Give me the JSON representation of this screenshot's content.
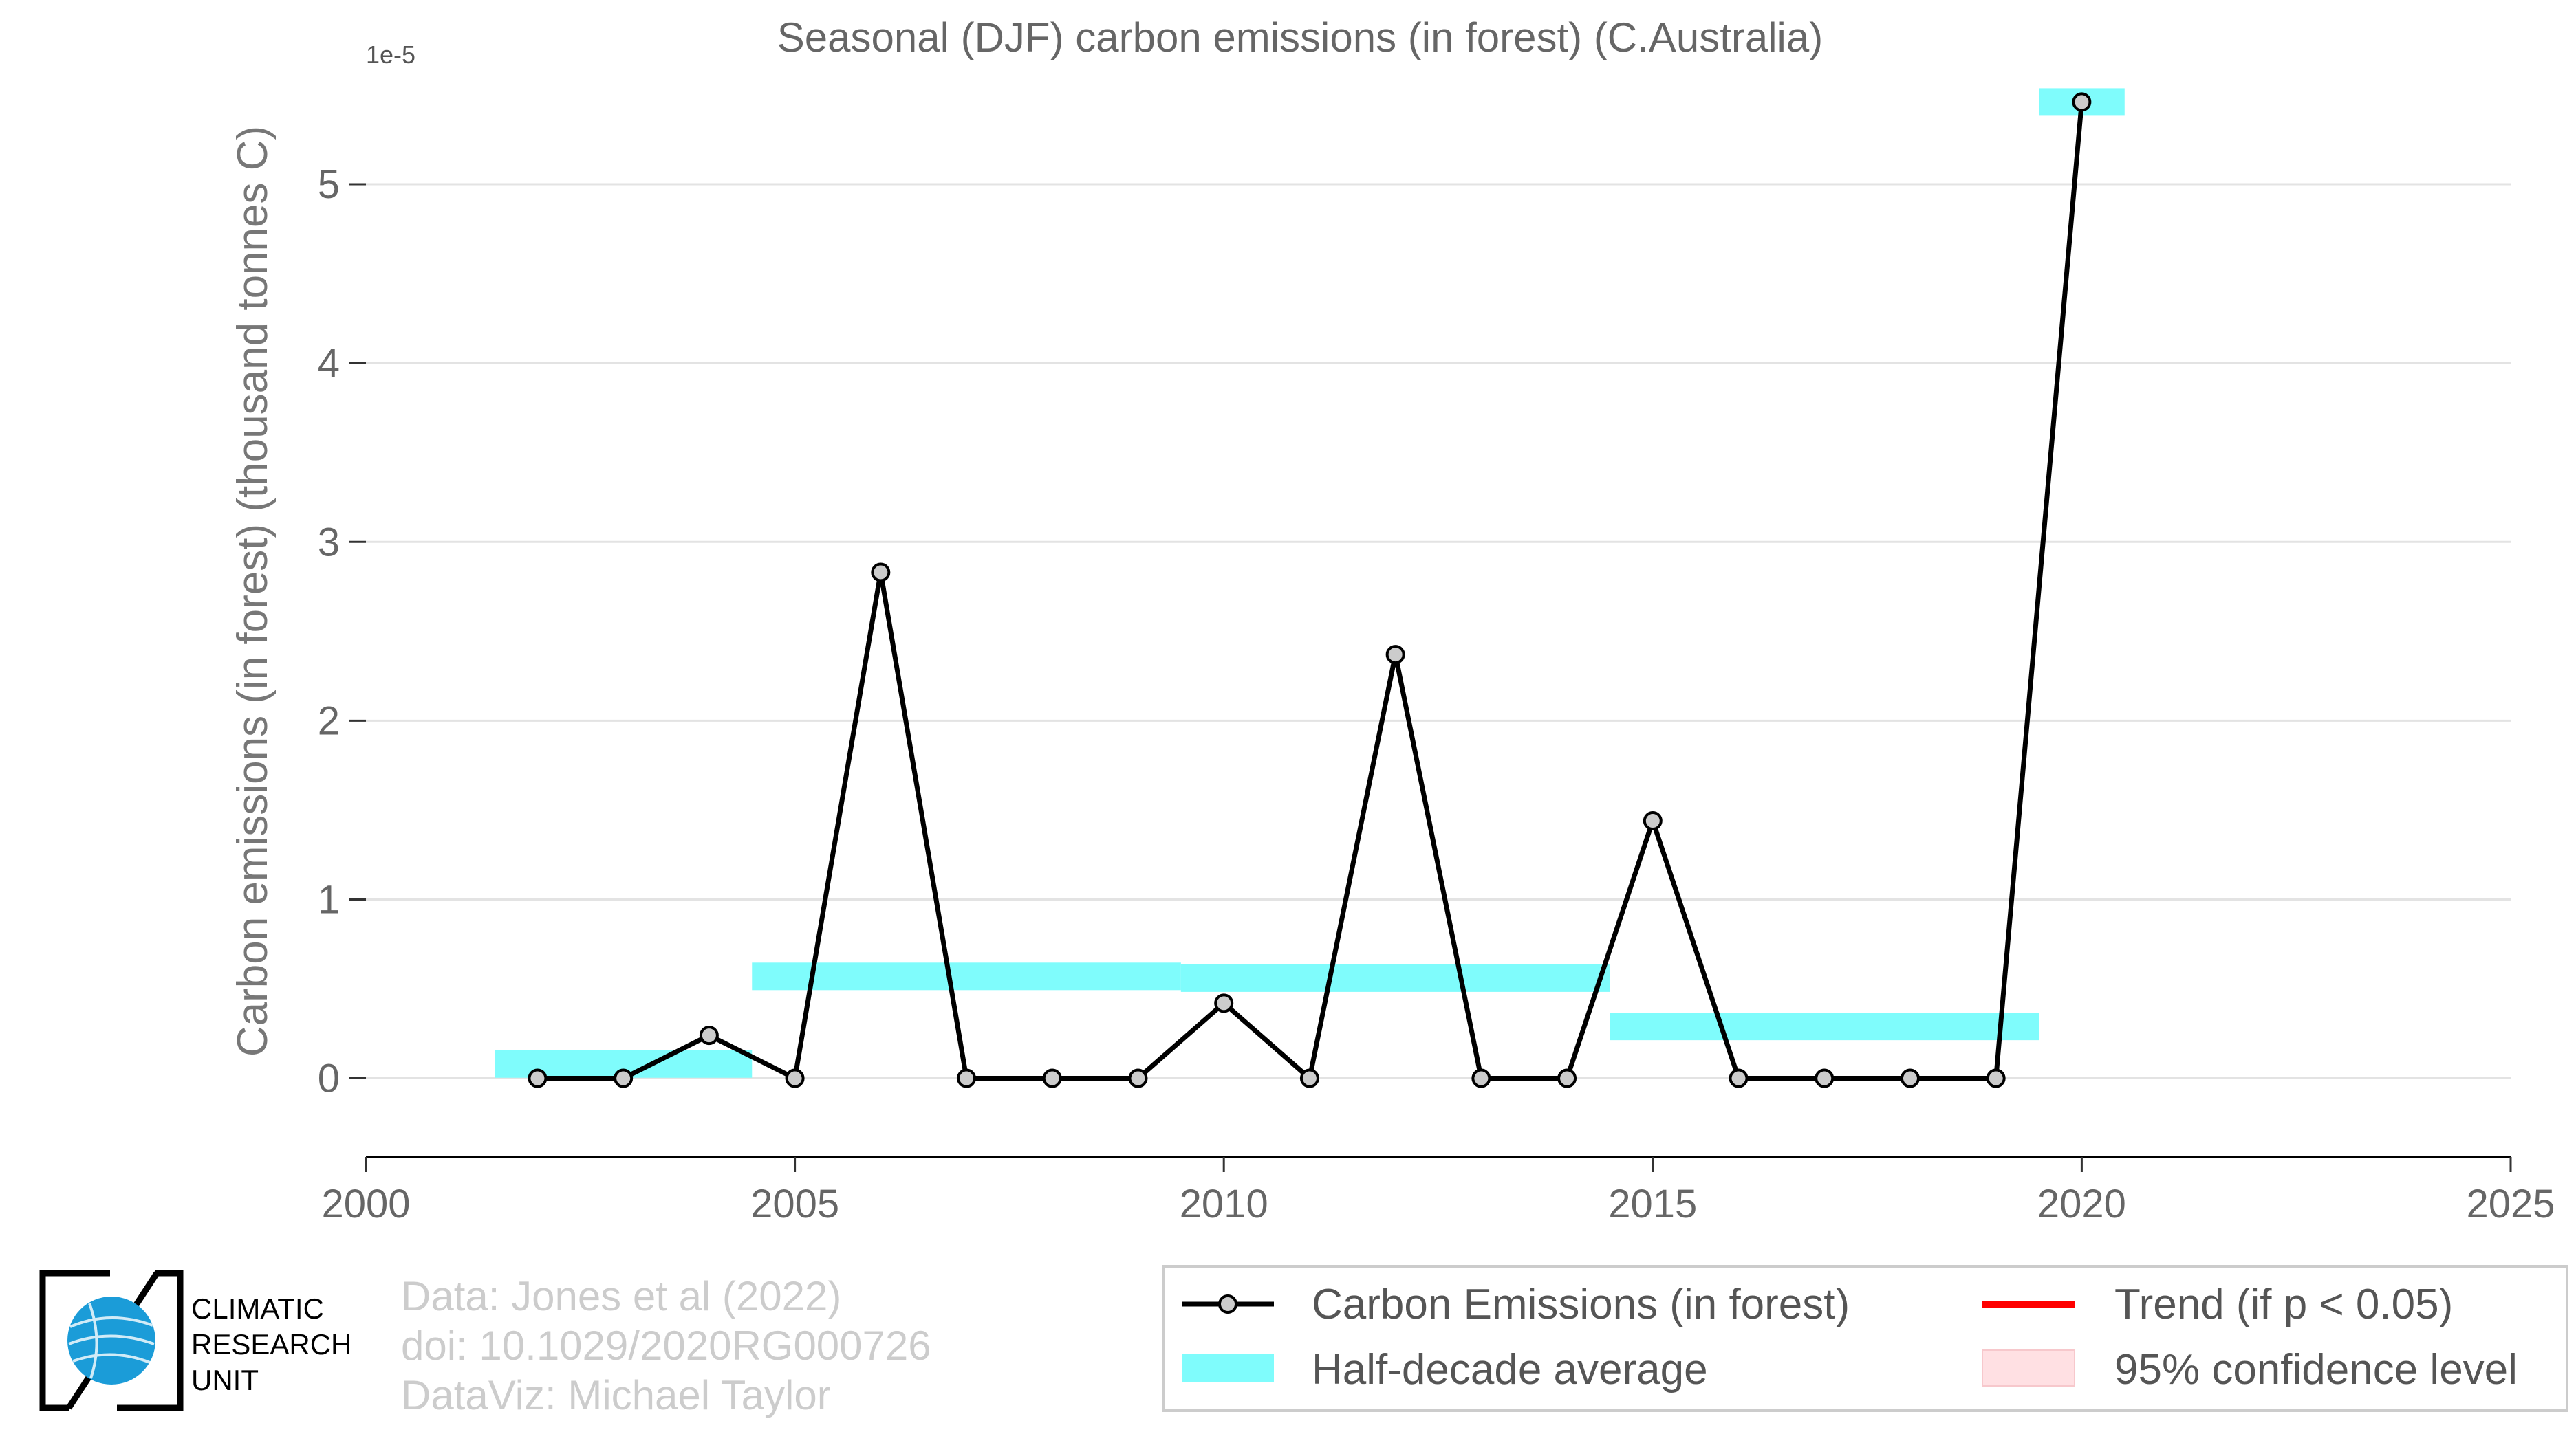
{
  "chart_data": {
    "type": "line",
    "title": "Seasonal (DJF) carbon emissions (in forest) (C.Australia)",
    "ylabel": "Carbon emissions (in forest) (thousand tonnes C)",
    "xlabel": "",
    "y_offset_label": "1e-5",
    "xlim": [
      2000,
      2025
    ],
    "ylim": [
      -0.44,
      5.5
    ],
    "x_ticks": [
      2000,
      2005,
      2010,
      2015,
      2020,
      2025
    ],
    "y_ticks": [
      0,
      1,
      2,
      3,
      4,
      5
    ],
    "grid": "horizontal",
    "legend_placement": "bottom-right",
    "series": [
      {
        "name": "Carbon Emissions (in forest)",
        "color": "#000000",
        "marker_fill": "#cccccc",
        "x": [
          2002,
          2003,
          2004,
          2005,
          2006,
          2007,
          2008,
          2009,
          2010,
          2011,
          2012,
          2013,
          2014,
          2015,
          2016,
          2017,
          2018,
          2019,
          2020
        ],
        "y": [
          0,
          0,
          0.24,
          0,
          2.83,
          0,
          0,
          0,
          0.42,
          0,
          2.37,
          0,
          0,
          1.44,
          0,
          0,
          0,
          0,
          5.46
        ]
      }
    ],
    "half_decade_average": {
      "name": "Half-decade average",
      "color": "#7ffcfc",
      "segments": [
        {
          "x0": 2001.5,
          "x1": 2004.5,
          "y": 0.08
        },
        {
          "x0": 2004.5,
          "x1": 2009.5,
          "y": 0.57
        },
        {
          "x0": 2009.5,
          "x1": 2014.5,
          "y": 0.56
        },
        {
          "x0": 2014.5,
          "x1": 2019.5,
          "y": 0.29
        },
        {
          "x0": 2019.5,
          "x1": 2020.5,
          "y": 5.46
        }
      ]
    },
    "legend": [
      {
        "label": "Carbon Emissions (in forest)",
        "kind": "line-marker",
        "color": "#000000"
      },
      {
        "label": "Trend (if p < 0.05)",
        "kind": "line",
        "color": "#ff0000"
      },
      {
        "label": "Half-decade average",
        "kind": "band",
        "color": "#7ffcfc"
      },
      {
        "label": "95% confidence level",
        "kind": "band",
        "color": "#ffe0e3"
      }
    ]
  },
  "credits": {
    "line1": "Data: Jones et al (2022)",
    "line2": "doi: 10.1029/2020RG000726",
    "line3": "DataViz: Michael Taylor"
  },
  "logo": {
    "line1": "CLIMATIC",
    "line2": "RESEARCH",
    "line3": "UNIT"
  }
}
